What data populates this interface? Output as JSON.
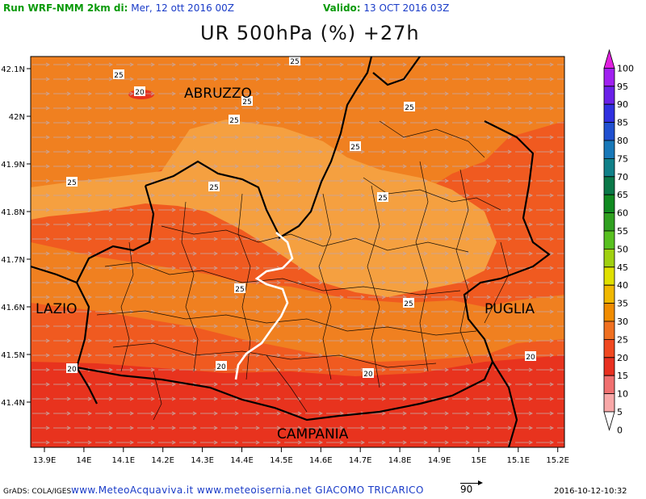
{
  "header": {
    "run_label": "Run WRF-NMM 2km di:",
    "run_date": " Mer, 12 ott 2016 00Z",
    "valid_label": "Valido:",
    "valid_date": " 13 OCT 2016 03Z"
  },
  "title": "UR 500hPa (%) +27h",
  "map": {
    "x_ticks": [
      "13.9E",
      "14E",
      "14.1E",
      "14.2E",
      "14.3E",
      "14.4E",
      "14.5E",
      "14.6E",
      "14.7E",
      "14.8E",
      "14.9E",
      "15E",
      "15.1E",
      "15.2E"
    ],
    "y_ticks": [
      "42.1N",
      "42N",
      "41.9N",
      "41.8N",
      "41.7N",
      "41.6N",
      "41.5N",
      "41.4N"
    ],
    "region_labels": [
      "ABRUZZO",
      "LAZIO",
      "PUGLIA",
      "CAMPANIA"
    ],
    "contour_labels": [
      "25",
      "25",
      "20",
      "25",
      "25",
      "25",
      "25",
      "25",
      "25",
      "25",
      "25",
      "25",
      "20",
      "20",
      "20",
      "20"
    ],
    "colors": {
      "c15": "#e8331e",
      "c20": "#f05a20",
      "c25": "#f08020",
      "c30": "#f5a040",
      "border_region": "#000000",
      "border_molise": "#ffffff"
    }
  },
  "colorbar": {
    "values": [
      "100",
      "95",
      "90",
      "85",
      "80",
      "75",
      "70",
      "65",
      "60",
      "55",
      "50",
      "45",
      "40",
      "35",
      "30",
      "25",
      "20",
      "15",
      "10",
      "5",
      "0"
    ],
    "colors": [
      "#e020e0",
      "#a020f0",
      "#6a20e8",
      "#3030e0",
      "#2050d0",
      "#1878b8",
      "#108088",
      "#0a7848",
      "#108a20",
      "#30a020",
      "#58c020",
      "#a0d010",
      "#e0e000",
      "#f0b800",
      "#f08c00",
      "#f07020",
      "#f04820",
      "#e83020",
      "#f07070",
      "#f8a8a8",
      "#ffffff"
    ]
  },
  "footer": {
    "grads": "GrADS: COLA/IGES",
    "site": "www.MeteoAcquaviva.it www.meteoisernia.net GIACOMO TRICARICO",
    "vector_ref": "90",
    "timestamp": "2016-10-12-10:32"
  }
}
